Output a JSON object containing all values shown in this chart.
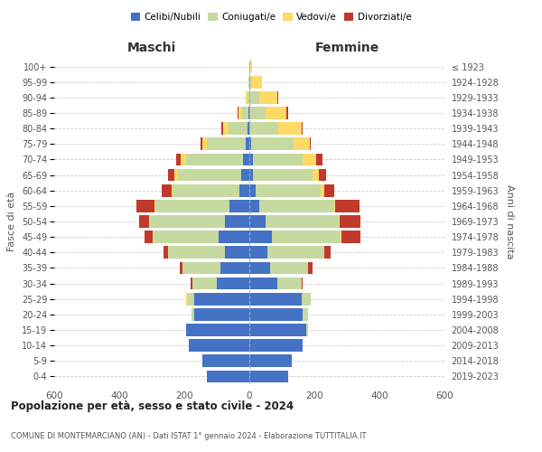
{
  "age_groups": [
    "0-4",
    "5-9",
    "10-14",
    "15-19",
    "20-24",
    "25-29",
    "30-34",
    "35-39",
    "40-44",
    "45-49",
    "50-54",
    "55-59",
    "60-64",
    "65-69",
    "70-74",
    "75-79",
    "80-84",
    "85-89",
    "90-94",
    "95-99",
    "100+"
  ],
  "birth_years": [
    "2019-2023",
    "2014-2018",
    "2009-2013",
    "2004-2008",
    "1999-2003",
    "1994-1998",
    "1989-1993",
    "1984-1988",
    "1979-1983",
    "1974-1978",
    "1969-1973",
    "1964-1968",
    "1959-1963",
    "1954-1958",
    "1949-1953",
    "1944-1948",
    "1939-1943",
    "1934-1938",
    "1929-1933",
    "1924-1928",
    "≤ 1923"
  ],
  "males": {
    "celibi": [
      130,
      145,
      185,
      195,
      170,
      170,
      100,
      90,
      75,
      95,
      75,
      60,
      30,
      25,
      20,
      10,
      5,
      2,
      0,
      0,
      0
    ],
    "coniugati": [
      0,
      0,
      0,
      0,
      8,
      20,
      75,
      115,
      175,
      200,
      230,
      230,
      205,
      195,
      175,
      120,
      60,
      20,
      5,
      2,
      0
    ],
    "vedovi": [
      0,
      0,
      0,
      0,
      0,
      5,
      0,
      0,
      0,
      2,
      3,
      3,
      5,
      10,
      15,
      15,
      15,
      10,
      5,
      0,
      0
    ],
    "divorziati": [
      0,
      0,
      0,
      0,
      0,
      0,
      5,
      10,
      15,
      25,
      30,
      55,
      30,
      20,
      15,
      5,
      5,
      5,
      0,
      0,
      0
    ]
  },
  "females": {
    "nubili": [
      120,
      130,
      165,
      175,
      165,
      160,
      85,
      65,
      55,
      70,
      50,
      30,
      20,
      10,
      10,
      5,
      0,
      0,
      0,
      0,
      0
    ],
    "coniugate": [
      0,
      0,
      0,
      5,
      15,
      30,
      75,
      115,
      175,
      210,
      225,
      230,
      200,
      185,
      155,
      130,
      90,
      50,
      30,
      8,
      2
    ],
    "vedove": [
      0,
      0,
      0,
      0,
      0,
      0,
      0,
      0,
      0,
      2,
      3,
      5,
      10,
      20,
      40,
      50,
      70,
      65,
      55,
      30,
      5
    ],
    "divorziate": [
      0,
      0,
      0,
      0,
      0,
      0,
      5,
      15,
      20,
      60,
      65,
      75,
      30,
      20,
      20,
      5,
      5,
      5,
      5,
      0,
      0
    ]
  },
  "colors": {
    "celibi": "#4472C4",
    "coniugati": "#C5D9A0",
    "vedovi": "#FFD966",
    "divorziati": "#C0392B"
  },
  "title_bold": "Popolazione per età, sesso e stato civile - 2024",
  "subtitle": "COMUNE DI MONTEMARCIANO (AN) - Dati ISTAT 1° gennaio 2024 - Elaborazione TUTTITALIA.IT",
  "xlabel_left": "Maschi",
  "xlabel_right": "Femmine",
  "ylabel_left": "Fasce di età",
  "ylabel_right": "Anni di nascita",
  "xlim": 600,
  "legend_labels": [
    "Celibi/Nubili",
    "Coniugati/e",
    "Vedovi/e",
    "Divorziati/e"
  ],
  "bg_color": "#FFFFFF",
  "grid_color": "#CCCCCC"
}
